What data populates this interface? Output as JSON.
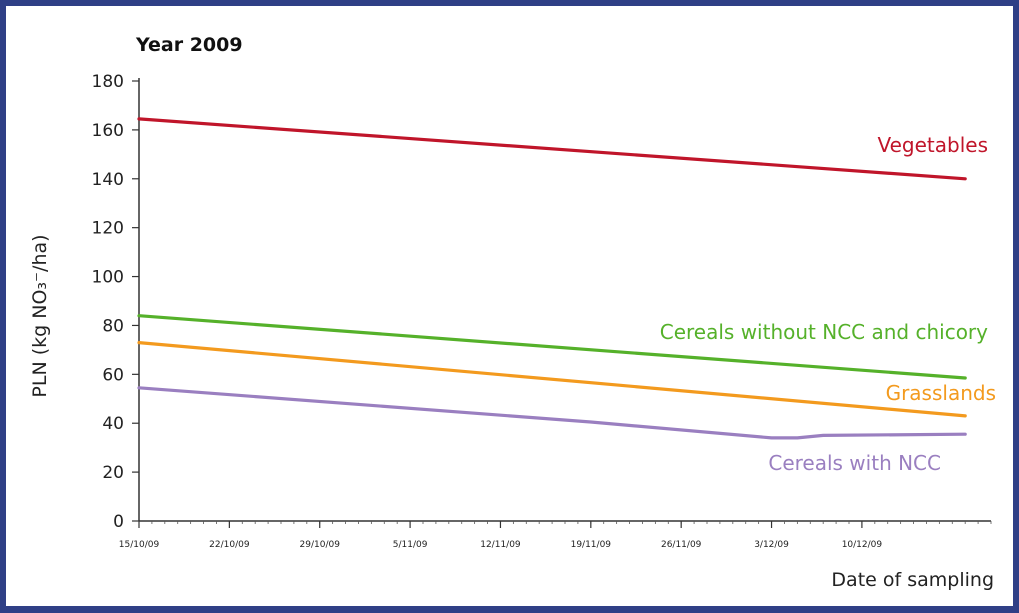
{
  "chart_data": {
    "type": "line",
    "title": "Year 2009",
    "xlabel": "Date of sampling",
    "ylabel": "PLN (kg NO₃⁻/ha)",
    "ylim": [
      0,
      180
    ],
    "yticks": [
      0,
      20,
      40,
      60,
      80,
      100,
      120,
      140,
      160,
      180
    ],
    "xlim": [
      "2009-10-15",
      "2009-12-20"
    ],
    "xticks": [
      "15/10/09",
      "22/10/09",
      "29/10/09",
      "5/11/09",
      "12/11/09",
      "19/11/09",
      "26/11/09",
      "3/12/09",
      "10/12/09"
    ],
    "grid": false,
    "series": [
      {
        "name": "Vegetables",
        "color": "#c0152a",
        "points": [
          [
            "2009-10-15",
            164.5
          ],
          [
            "2009-12-18",
            140
          ]
        ]
      },
      {
        "name": "Cereals without NCC and chicory",
        "color": "#55b12a",
        "points": [
          [
            "2009-10-15",
            84
          ],
          [
            "2009-12-18",
            58.5
          ]
        ]
      },
      {
        "name": "Grasslands",
        "color": "#f39a1e",
        "points": [
          [
            "2009-10-15",
            73
          ],
          [
            "2009-12-18",
            43
          ]
        ]
      },
      {
        "name": "Cereals with NCC",
        "color": "#9a7fc0",
        "points": [
          [
            "2009-10-15",
            54.5
          ],
          [
            "2009-11-19",
            40.5
          ],
          [
            "2009-12-03",
            34
          ],
          [
            "2009-12-05",
            34
          ],
          [
            "2009-12-07",
            35
          ],
          [
            "2009-12-18",
            35.5
          ]
        ]
      }
    ]
  }
}
